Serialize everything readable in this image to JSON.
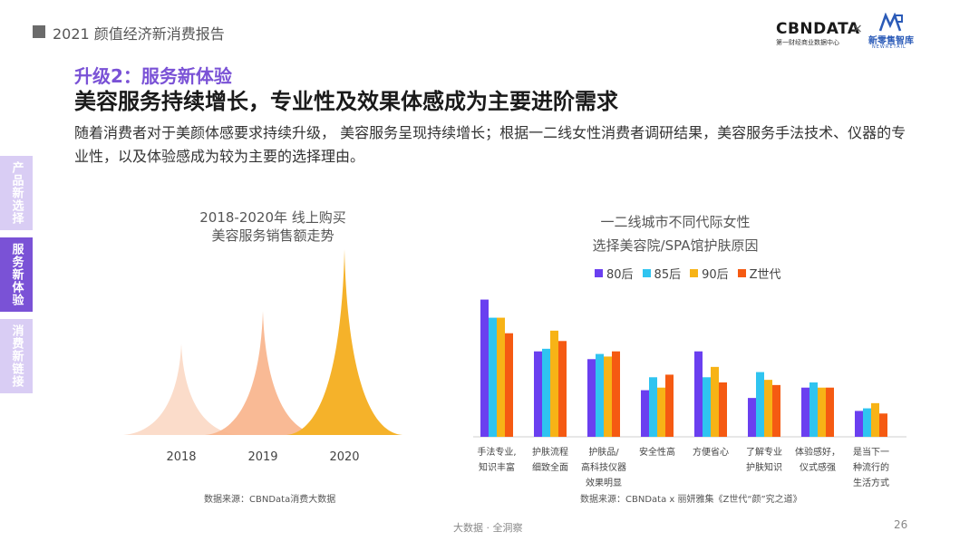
{
  "header": {
    "report_title": "2021 颜值经济新消费报告",
    "logo_cbn": "CBNDATA",
    "logo_cbn_sub": "第一财经商业数据中心",
    "logo_sep": "×",
    "logo_partner": "新零售智库",
    "logo_partner_sub": "NEWRETAIL"
  },
  "title": {
    "kicker": "升级2：服务新体验",
    "headline": "美容服务持续增长，专业性及效果体感成为主要进阶需求"
  },
  "intro": "随着消费者对于美颜体感要求持续升级， 美容服务呈现持续增长；根据一二线女性消费者调研结果，美容服务手法技术、仪器的专业性，以及体验感成为较为主要的选择理由。",
  "side_tabs": [
    {
      "label": "产品新选择",
      "active": false
    },
    {
      "label": "服务新体验",
      "active": true
    },
    {
      "label": "消费新链接",
      "active": false
    }
  ],
  "colors": {
    "accent": "#7a52d6",
    "peak_2018": "#fbd9c6",
    "peak_2019": "#f9b48c",
    "peak_2020": "#f5b22a",
    "s80": "#6a3ff0",
    "s85": "#2fc4f0",
    "s90": "#f7b316",
    "sZ": "#f55a12"
  },
  "chart_data": [
    {
      "type": "area",
      "title_line1": "2018-2020年 线上购买",
      "title_line2": "美容服务销售额走势",
      "categories": [
        "2018",
        "2019",
        "2020"
      ],
      "values": [
        28,
        38,
        57
      ],
      "value_scale": "relative index (unlabeled)",
      "source": "数据来源：CBNData消费大数据"
    },
    {
      "type": "bar",
      "title_line1": "一二线城市不同代际女性",
      "title_line2": "选择美容院/SPA馆护肤原因",
      "categories": [
        [
          "手法专业,",
          "知识丰富"
        ],
        [
          "护肤流程",
          "细致全面"
        ],
        [
          "护肤品/",
          "高科技仪器",
          "效果明显"
        ],
        [
          "安全性高"
        ],
        [
          "方便省心"
        ],
        [
          "了解专业",
          "护肤知识"
        ],
        [
          "体验感好，",
          "仪式感强"
        ],
        [
          "是当下一",
          "种流行的",
          "生活方式"
        ]
      ],
      "series": [
        {
          "name": "80后",
          "values": [
            53,
            33,
            30,
            18,
            33,
            15,
            19,
            10
          ]
        },
        {
          "name": "85后",
          "values": [
            46,
            34,
            32,
            23,
            23,
            25,
            21,
            11
          ]
        },
        {
          "name": "90后",
          "values": [
            46,
            41,
            31,
            19,
            27,
            22,
            19,
            13
          ]
        },
        {
          "name": "Z世代",
          "values": [
            40,
            37,
            33,
            24,
            21,
            20,
            19,
            9
          ]
        }
      ],
      "ylim": [
        0,
        56
      ],
      "source": "数据来源：CBNData x 丽妍雅集《Z世代“颜”究之道》"
    }
  ],
  "footer": {
    "tagline": "大数据 · 全洞察",
    "page_number": "26"
  }
}
